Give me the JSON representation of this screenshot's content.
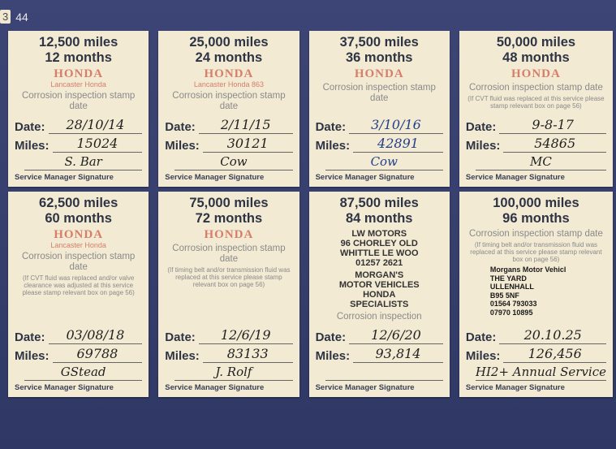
{
  "page": {
    "prev_page": "3",
    "page_number": "44"
  },
  "labels": {
    "date": "Date:",
    "miles": "Miles:",
    "footer": "Service Manager Signature"
  },
  "cards": [
    {
      "miles": "12,500 miles",
      "months": "12 months",
      "stamp": "HONDA",
      "stamp_sub": "Lancaster Honda",
      "corrosion": "Corrosion inspection stamp date",
      "note": "",
      "date": "28/10/14",
      "miles_value": "15024",
      "signature": "S. Bar",
      "ink": "#222"
    },
    {
      "miles": "25,000 miles",
      "months": "24 months",
      "stamp": "HONDA",
      "stamp_sub": "Lancaster Honda 863",
      "corrosion": "Corrosion inspection stamp date",
      "note": "",
      "date": "2/11/15",
      "miles_value": "30121",
      "signature": "Cow",
      "ink": "#222"
    },
    {
      "miles": "37,500 miles",
      "months": "36 months",
      "stamp": "HONDA",
      "stamp_sub": "",
      "corrosion": "Corrosion inspection stamp date",
      "note": "",
      "date": "3/10/16",
      "miles_value": "42891",
      "signature": "Cow",
      "ink": "#233f8a"
    },
    {
      "miles": "50,000 miles",
      "months": "48 months",
      "stamp": "HONDA",
      "stamp_sub": "",
      "corrosion": "Corrosion inspection stamp date",
      "note": "(If CVT fluid was replaced at this service please stamp relevant box on page 56)",
      "date": "9-8-17",
      "miles_value": "54865",
      "signature": "MC",
      "ink": "#222"
    },
    {
      "miles": "62,500 miles",
      "months": "60 months",
      "stamp": "HONDA",
      "stamp_sub": "Lancaster Honda",
      "corrosion": "Corrosion inspection stamp date",
      "note": "(If CVT fluid was replaced and/or valve clearance was adjusted at this service please stamp relevant box on page 56)",
      "date": "03/08/18",
      "miles_value": "69788",
      "signature": "GStead",
      "ink": "#222"
    },
    {
      "miles": "75,000 miles",
      "months": "72 months",
      "stamp": "HONDA",
      "stamp_sub": "",
      "corrosion": "Corrosion inspection stamp date",
      "note": "(If timing belt and/or transmission fluid was replaced at this service please stamp relevant box on page 56)",
      "date": "12/6/19",
      "miles_value": "83133",
      "signature": "J. Rolf",
      "ink": "#222"
    },
    {
      "miles": "87,500 miles",
      "months": "84 months",
      "stamp": "",
      "stamp_sub": "",
      "corrosion": "Corrosion inspection",
      "note": "",
      "date": "12/6/20",
      "miles_value": "93,814",
      "signature": "",
      "ink": "#222"
    },
    {
      "miles": "100,000 miles",
      "months": "96 months",
      "stamp": "",
      "stamp_sub": "",
      "corrosion": "Corrosion inspection stamp date",
      "note": "(If timing belt and/or transmission fluid was replaced at this service please stamp relevant box on page 56)",
      "date": "20.10.25",
      "miles_value": "126,456",
      "signature": "HI2+ Annual Service",
      "ink": "#222"
    }
  ],
  "dealer_stamps": {
    "whittle": [
      "LW MOTORS",
      "96 CHORLEY OLD",
      "WHITTLE LE WOO",
      "01257 2621"
    ],
    "morgans": [
      "MORGAN'S",
      "MOTOR VEHICLES",
      "HONDA",
      "SPECIALISTS"
    ],
    "morgans_address": [
      "Morgans Motor Vehicl",
      "THE YARD",
      "ULLENHALL",
      "B95 5NF",
      "01564 793033",
      "07970 10895"
    ]
  },
  "colors": {
    "background": "#3a4272",
    "card": "#f2ead3",
    "stamp_red": "#cd5a46"
  }
}
